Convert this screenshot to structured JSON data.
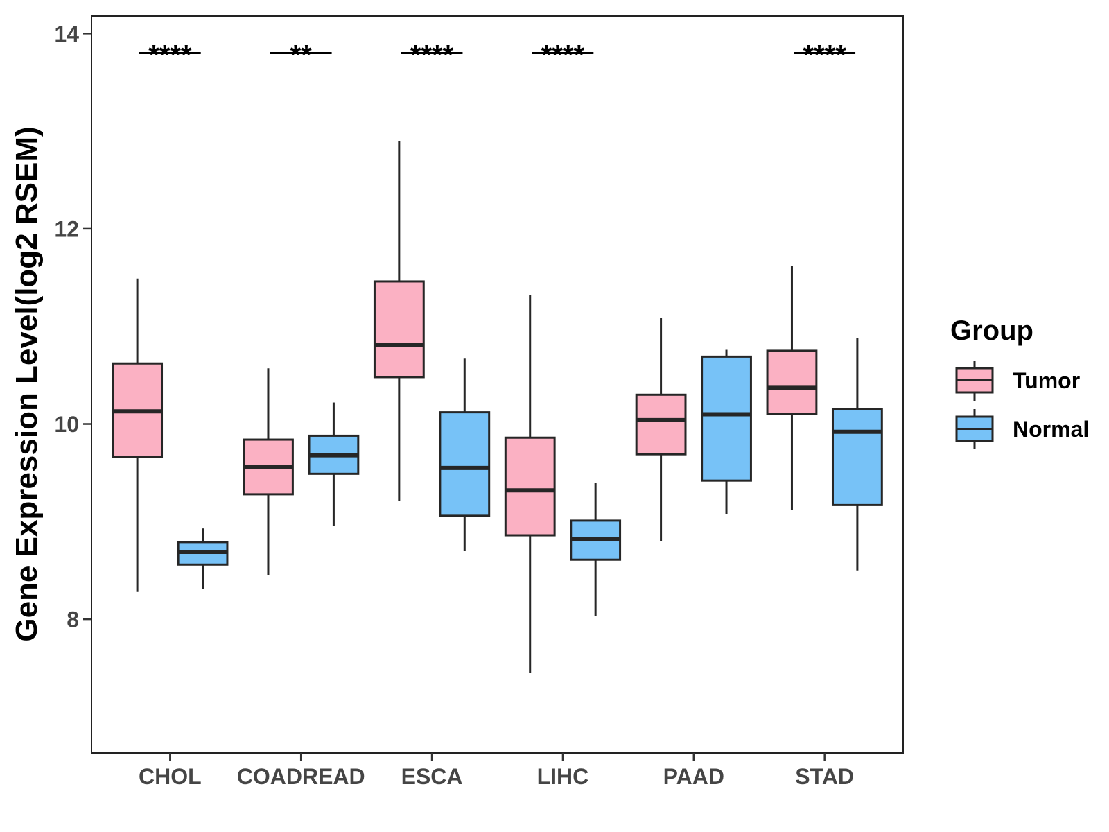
{
  "chart_data": {
    "type": "boxplot",
    "ylabel": "Gene Expression Level(log2 RSEM)",
    "categories": [
      "CHOL",
      "COADREAD",
      "ESCA",
      "LIHC",
      "PAAD",
      "STAD"
    ],
    "yticks": [
      8,
      10,
      12,
      14
    ],
    "ylim": [
      6.63,
      14.18
    ],
    "grid": false,
    "legend": {
      "title": "Group",
      "position": "right"
    },
    "series": [
      {
        "name": "Tumor",
        "color": "#FBB1C3",
        "boxes": [
          {
            "whisker_low": 8.28,
            "q1": 9.66,
            "median": 10.13,
            "q3": 10.62,
            "whisker_high": 11.49
          },
          {
            "whisker_low": 8.45,
            "q1": 9.28,
            "median": 9.56,
            "q3": 9.84,
            "whisker_high": 10.57
          },
          {
            "whisker_low": 9.21,
            "q1": 10.48,
            "median": 10.81,
            "q3": 11.46,
            "whisker_high": 12.9
          },
          {
            "whisker_low": 7.45,
            "q1": 8.86,
            "median": 9.32,
            "q3": 9.86,
            "whisker_high": 11.32
          },
          {
            "whisker_low": 8.8,
            "q1": 9.69,
            "median": 10.04,
            "q3": 10.3,
            "whisker_high": 11.09
          },
          {
            "whisker_low": 9.12,
            "q1": 10.1,
            "median": 10.37,
            "q3": 10.75,
            "whisker_high": 11.62
          }
        ]
      },
      {
        "name": "Normal",
        "color": "#77C2F7",
        "boxes": [
          {
            "whisker_low": 8.31,
            "q1": 8.56,
            "median": 8.69,
            "q3": 8.79,
            "whisker_high": 8.93
          },
          {
            "whisker_low": 8.96,
            "q1": 9.49,
            "median": 9.68,
            "q3": 9.88,
            "whisker_high": 10.22
          },
          {
            "whisker_low": 8.7,
            "q1": 9.06,
            "median": 9.55,
            "q3": 10.12,
            "whisker_high": 10.67
          },
          {
            "whisker_low": 8.03,
            "q1": 8.61,
            "median": 8.82,
            "q3": 9.01,
            "whisker_high": 9.4
          },
          {
            "whisker_low": 9.08,
            "q1": 9.42,
            "median": 10.1,
            "q3": 10.69,
            "whisker_high": 10.76
          },
          {
            "whisker_low": 8.5,
            "q1": 9.17,
            "median": 9.92,
            "q3": 10.15,
            "whisker_high": 10.88
          }
        ]
      }
    ],
    "significance": [
      {
        "category": "CHOL",
        "label": "****",
        "y": 13.8
      },
      {
        "category": "COADREAD",
        "label": "**",
        "y": 13.8
      },
      {
        "category": "ESCA",
        "label": "****",
        "y": 13.8
      },
      {
        "category": "LIHC",
        "label": "****",
        "y": 13.8
      },
      {
        "category": "STAD",
        "label": "****",
        "y": 13.8
      }
    ]
  }
}
